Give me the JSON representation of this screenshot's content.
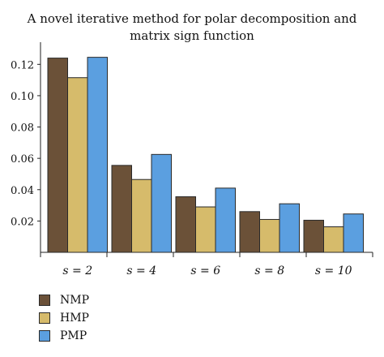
{
  "chart_data": {
    "type": "bar",
    "title_lines": [
      "A novel iterative method for polar decomposition and",
      "matrix sign function"
    ],
    "categories": [
      "s = 2",
      "s = 4",
      "s = 6",
      "s = 8",
      "s = 10"
    ],
    "series": [
      {
        "name": "NMP",
        "color": "#6b5138",
        "values": [
          0.124,
          0.0555,
          0.0355,
          0.026,
          0.0205
        ]
      },
      {
        "name": "HMP",
        "color": "#d6bb6b",
        "values": [
          0.1115,
          0.0465,
          0.029,
          0.021,
          0.0163
        ]
      },
      {
        "name": "PMP",
        "color": "#5b9fe0",
        "values": [
          0.1245,
          0.0625,
          0.041,
          0.031,
          0.0245
        ]
      }
    ],
    "ylim": [
      0,
      0.13
    ],
    "yticks": [
      "0.02",
      "0.04",
      "0.06",
      "0.08",
      "0.10",
      "0.12"
    ],
    "ytick_values": [
      0.02,
      0.04,
      0.06,
      0.08,
      0.1,
      0.12
    ],
    "xlabel": "",
    "ylabel": "",
    "legend_position": "bottom-left"
  }
}
